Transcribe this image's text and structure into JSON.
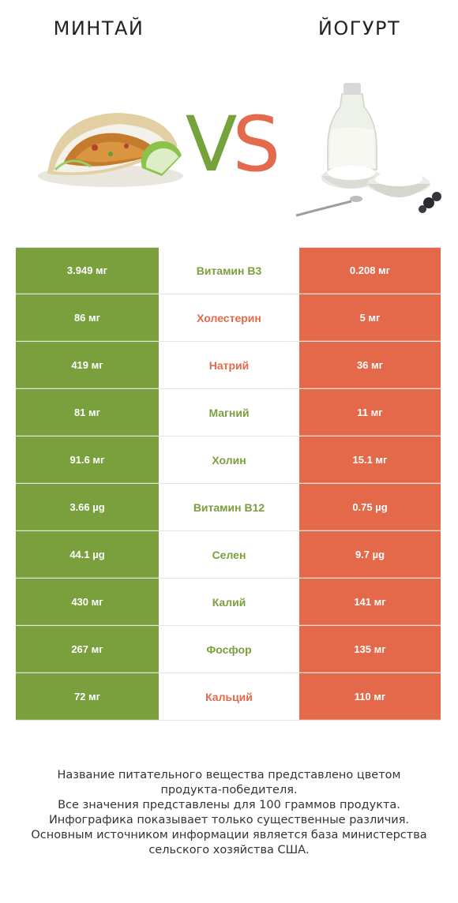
{
  "header": {
    "left_title": "МИНТАЙ",
    "right_title": "ЙОГУРТ",
    "vs_v": "V",
    "vs_s": "S"
  },
  "colors": {
    "left_winner": "#7a9f3d",
    "right_winner": "#e3694a"
  },
  "rows": [
    {
      "left": "3.949 мг",
      "nutrient": "Витамин B3",
      "right": "0.208 мг",
      "winner": "left"
    },
    {
      "left": "86 мг",
      "nutrient": "Холестерин",
      "right": "5 мг",
      "winner": "right"
    },
    {
      "left": "419 мг",
      "nutrient": "Натрий",
      "right": "36 мг",
      "winner": "right"
    },
    {
      "left": "81 мг",
      "nutrient": "Магний",
      "right": "11 мг",
      "winner": "left"
    },
    {
      "left": "91.6 мг",
      "nutrient": "Холин",
      "right": "15.1 мг",
      "winner": "left"
    },
    {
      "left": "3.66 µg",
      "nutrient": "Витамин B12",
      "right": "0.75 µg",
      "winner": "left"
    },
    {
      "left": "44.1 µg",
      "nutrient": "Селен",
      "right": "9.7 µg",
      "winner": "left"
    },
    {
      "left": "430 мг",
      "nutrient": "Калий",
      "right": "141 мг",
      "winner": "left"
    },
    {
      "left": "267 мг",
      "nutrient": "Фосфор",
      "right": "135 мг",
      "winner": "left"
    },
    {
      "left": "72 мг",
      "nutrient": "Кальций",
      "right": "110 мг",
      "winner": "right"
    }
  ],
  "footer": {
    "line1": "Название питательного вещества представлено цветом",
    "line2": "продукта-победителя.",
    "line3": "Все значения представлены для 100 граммов продукта.",
    "line4": "Инфографика показывает только существенные различия.",
    "line5": "Основным источником информации является база министерства",
    "line6": "сельского хозяйства США."
  }
}
